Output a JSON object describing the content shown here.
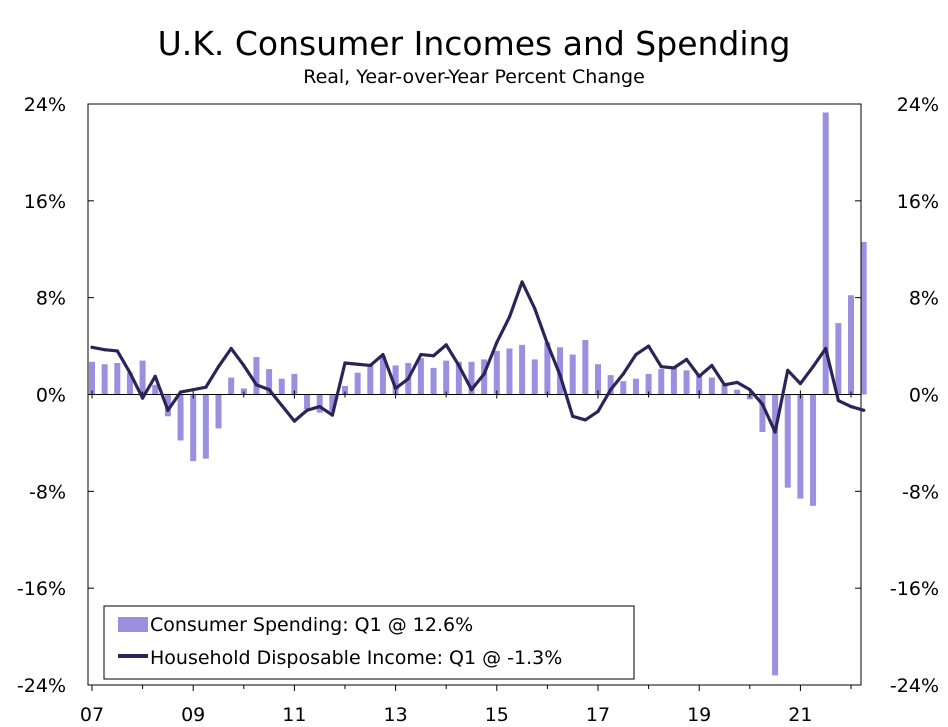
{
  "chart_data": {
    "type": "bar+line",
    "title": "U.K. Consumer Incomes and Spending",
    "subtitle": "Real, Year-over-Year Percent Change",
    "y_ticks": [
      "24%",
      "16%",
      "8%",
      "0%",
      "-8%",
      "-16%",
      "-24%"
    ],
    "y_tick_values": [
      24,
      16,
      8,
      0,
      -8,
      -16,
      -24
    ],
    "ylim": [
      -24,
      24
    ],
    "x_ticks": [
      "07",
      "09",
      "11",
      "13",
      "15",
      "17",
      "19",
      "21"
    ],
    "x_tick_positions": [
      0,
      8,
      16,
      24,
      32,
      40,
      48,
      56
    ],
    "x_range": [
      0,
      61
    ],
    "colors": {
      "bars": "#9b8fdf",
      "line": "#2b2557",
      "axis": "#000000"
    },
    "series": [
      {
        "name": "Consumer Spending",
        "type": "bar",
        "legend": "Consumer Spending: Q1 @ 12.6%",
        "values": [
          2.7,
          2.5,
          2.6,
          1.8,
          2.8,
          0.8,
          -1.8,
          -3.8,
          -5.5,
          -5.3,
          -2.8,
          1.4,
          0.5,
          3.1,
          2.1,
          1.3,
          1.7,
          -1.2,
          -1.5,
          -1.4,
          0.7,
          1.8,
          2.5,
          3.2,
          2.4,
          2.6,
          3.0,
          2.2,
          2.8,
          2.7,
          2.7,
          2.9,
          3.6,
          3.8,
          4.1,
          2.9,
          4.3,
          3.9,
          3.3,
          4.5,
          2.5,
          1.6,
          1.1,
          1.3,
          1.7,
          2.1,
          2.2,
          2.0,
          1.6,
          1.4,
          0.8,
          0.4,
          -0.4,
          -3.1,
          -23.2,
          -7.7,
          -8.6,
          -9.2,
          23.3,
          5.9,
          8.2,
          12.6
        ]
      },
      {
        "name": "Household Disposable Income",
        "type": "line",
        "legend": "Household Disposable Income: Q1 @ -1.3%",
        "values": [
          3.9,
          3.7,
          3.6,
          1.8,
          -0.3,
          1.5,
          -1.3,
          0.2,
          0.4,
          0.6,
          2.3,
          3.8,
          2.4,
          0.8,
          0.4,
          -0.9,
          -2.2,
          -1.3,
          -1.0,
          -1.7,
          2.6,
          2.5,
          2.4,
          3.3,
          0.5,
          1.3,
          3.3,
          3.2,
          4.1,
          2.4,
          0.4,
          1.7,
          4.3,
          6.4,
          9.3,
          7.1,
          4.2,
          1.6,
          -1.8,
          -2.1,
          -1.4,
          0.4,
          1.7,
          3.3,
          4.0,
          2.3,
          2.2,
          2.9,
          1.5,
          2.4,
          0.8,
          1.0,
          0.4,
          -0.8,
          -3.1,
          2.0,
          0.9,
          2.3,
          3.8,
          -0.5,
          -1.0,
          -1.3
        ]
      }
    ]
  }
}
